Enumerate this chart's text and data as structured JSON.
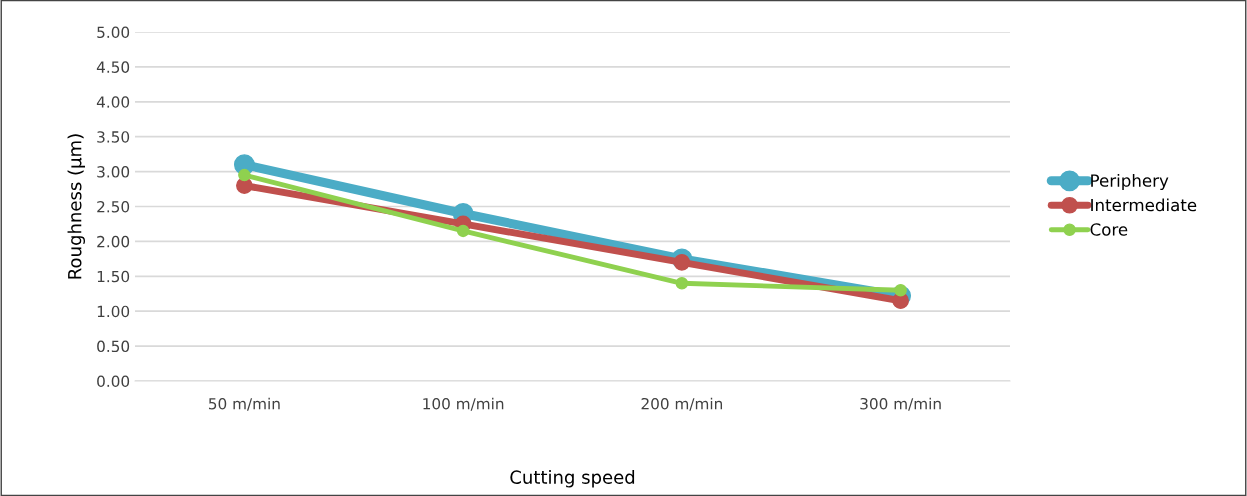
{
  "chart_data": {
    "type": "line",
    "xlabel": "Cutting speed",
    "ylabel": "Roughness (µm)",
    "categories": [
      "50 m/min",
      "100 m/min",
      "200 m/min",
      "300 m/min"
    ],
    "series": [
      {
        "name": "Periphery",
        "color": "#4bacc6",
        "values": [
          3.1,
          2.4,
          1.75,
          1.22
        ]
      },
      {
        "name": "Intermediate",
        "color": "#c0504d",
        "values": [
          2.8,
          2.25,
          1.7,
          1.15
        ]
      },
      {
        "name": "Core",
        "color": "#8fd14f",
        "values": [
          2.95,
          2.15,
          1.4,
          1.3
        ]
      }
    ],
    "ylim": [
      0,
      5
    ],
    "yticks": [
      {
        "value": 0,
        "label": "0.00"
      },
      {
        "value": 0.5,
        "label": "0.50"
      },
      {
        "value": 1,
        "label": "1.00"
      },
      {
        "value": 1.5,
        "label": "1.50"
      },
      {
        "value": 2,
        "label": "2.00"
      },
      {
        "value": 2.5,
        "label": "2.50"
      },
      {
        "value": 3,
        "label": "3.00"
      },
      {
        "value": 3.5,
        "label": "3.50"
      },
      {
        "value": 4,
        "label": "4.00"
      },
      {
        "value": 4.5,
        "label": "4.50"
      },
      {
        "value": 5,
        "label": "5.00"
      }
    ],
    "grid": "y",
    "legend": "right",
    "marker": "circle",
    "line_style": "solid"
  }
}
